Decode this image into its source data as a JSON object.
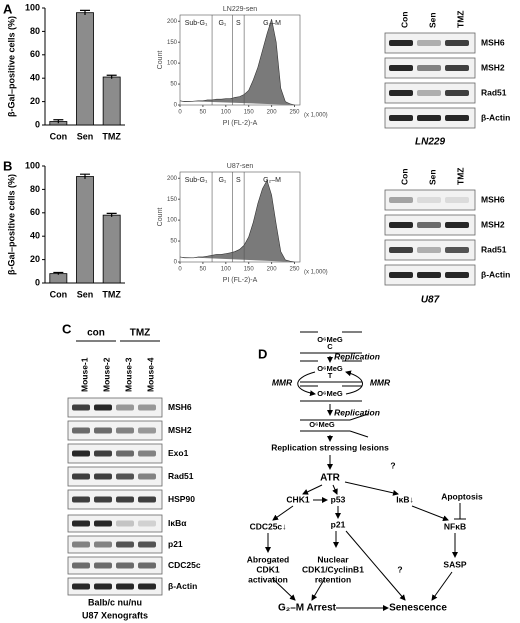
{
  "panel_labels": [
    "A",
    "B",
    "C",
    "D"
  ],
  "chart_data": [
    {
      "type": "bar",
      "ylabel": "β-Gal–positive cells (%)",
      "categories": [
        "Con",
        "Sen",
        "TMZ"
      ],
      "values": [
        3,
        96,
        41
      ],
      "errors": [
        1.5,
        2,
        1.5
      ],
      "color": "#8c8c8c",
      "ylim": [
        0,
        100
      ],
      "yticks": [
        0,
        20,
        40,
        60,
        80,
        100
      ]
    },
    {
      "type": "area",
      "title": "LN229-sen",
      "xlabel": "PI (FL-2)-A",
      "ylabel": "Count",
      "x_unit": "(x 1,000)",
      "x": [
        0,
        10,
        20,
        30,
        40,
        50,
        60,
        70,
        80,
        90,
        100,
        110,
        120,
        130,
        140,
        150,
        160,
        170,
        180,
        190,
        200,
        210,
        220,
        230,
        240,
        250
      ],
      "values": [
        10,
        8,
        8,
        9,
        10,
        10,
        12,
        12,
        14,
        14,
        15,
        15,
        18,
        20,
        25,
        35,
        60,
        90,
        130,
        170,
        205,
        150,
        40,
        8,
        3,
        0
      ],
      "color": "#7a7a7a",
      "xlim": [
        0,
        262
      ],
      "xticks": [
        0,
        50,
        100,
        150,
        200,
        250
      ],
      "ylim": [
        0,
        215
      ],
      "yticks": [
        0,
        50,
        100,
        150,
        200
      ],
      "gates": [
        {
          "label": "Sub-G₁",
          "range": [
            0,
            70
          ]
        },
        {
          "label": "G₁",
          "range": [
            70,
            115
          ]
        },
        {
          "label": "S",
          "range": [
            115,
            140
          ]
        },
        {
          "label": "G₂–M",
          "range": [
            140,
            262
          ]
        }
      ]
    },
    {
      "type": "bar",
      "ylabel": "β-Gal–positive cells (%)",
      "categories": [
        "Con",
        "Sen",
        "TMZ"
      ],
      "values": [
        8,
        91,
        58
      ],
      "errors": [
        1,
        2,
        1.5
      ],
      "color": "#8c8c8c",
      "ylim": [
        0,
        100
      ],
      "yticks": [
        0,
        20,
        40,
        60,
        80,
        100
      ]
    },
    {
      "type": "area",
      "title": "U87-sen",
      "xlabel": "PI (FL-2)-A",
      "ylabel": "Count",
      "x_unit": "(x 1,000)",
      "x": [
        0,
        10,
        20,
        30,
        40,
        50,
        60,
        70,
        80,
        90,
        100,
        110,
        120,
        130,
        140,
        150,
        160,
        170,
        180,
        190,
        200,
        210,
        220,
        230,
        240,
        250
      ],
      "values": [
        12,
        10,
        10,
        10,
        12,
        12,
        14,
        16,
        18,
        18,
        20,
        22,
        25,
        30,
        40,
        60,
        95,
        140,
        175,
        195,
        160,
        90,
        25,
        5,
        2,
        0
      ],
      "color": "#7a7a7a",
      "xlim": [
        0,
        262
      ],
      "xticks": [
        0,
        50,
        100,
        150,
        200,
        250
      ],
      "ylim": [
        0,
        215
      ],
      "yticks": [
        0,
        50,
        100,
        150,
        200
      ],
      "gates": [
        {
          "label": "Sub-G₁",
          "range": [
            0,
            70
          ]
        },
        {
          "label": "G₁",
          "range": [
            70,
            115
          ]
        },
        {
          "label": "S",
          "range": [
            115,
            140
          ]
        },
        {
          "label": "G₂–M",
          "range": [
            140,
            262
          ]
        }
      ]
    }
  ],
  "blots": [
    {
      "columns": [
        "Con",
        "Sen",
        "TMZ"
      ],
      "rows": [
        "MSH6",
        "MSH2",
        "Rad51",
        "β-Actin"
      ],
      "caption": "LN229"
    },
    {
      "columns": [
        "Con",
        "Sen",
        "TMZ"
      ],
      "rows": [
        "MSH6",
        "MSH2",
        "Rad51",
        "β-Actin"
      ],
      "caption": "U87"
    },
    {
      "groups": [
        "con",
        "TMZ"
      ],
      "columns": [
        "Mouse-1",
        "Mouse-2",
        "Mouse-3",
        "Mouse-4"
      ],
      "rows": [
        "MSH6",
        "MSH2",
        "Exo1",
        "Rad51",
        "HSP90"
      ],
      "rows2": [
        "IκBα",
        "p21",
        "CDC25c",
        "β-Actin"
      ],
      "caption": [
        "Balb/c nu/nu",
        "U87 Xenografts"
      ]
    }
  ],
  "diagram": {
    "nodes": [
      {
        "lines": [
          "O⁶MeG"
        ]
      },
      {
        "lines": [
          "C"
        ]
      },
      {
        "lines": [
          "Replication"
        ]
      },
      {
        "lines": [
          "O⁶MeG"
        ]
      },
      {
        "lines": [
          "T"
        ]
      },
      {
        "lines": [
          "MMR"
        ]
      },
      {
        "lines": [
          "MMR"
        ]
      },
      {
        "lines": [
          "O⁶MeG"
        ]
      },
      {
        "lines": [
          "Replication"
        ]
      },
      {
        "lines": [
          "O⁶MeG"
        ]
      },
      {
        "lines": [
          "Replication stressing lesions"
        ]
      },
      {
        "lines": [
          "ATR"
        ]
      },
      {
        "lines": [
          "?"
        ]
      },
      {
        "lines": [
          "CHK1"
        ]
      },
      {
        "lines": [
          "p53"
        ]
      },
      {
        "lines": [
          "IκB↓"
        ]
      },
      {
        "lines": [
          "Apoptosis"
        ]
      },
      {
        "lines": [
          "NFκB"
        ]
      },
      {
        "lines": [
          "CDC25c↓"
        ]
      },
      {
        "lines": [
          "p21"
        ]
      },
      {
        "lines": [
          "SASP"
        ]
      },
      {
        "lines": [
          "Abrogated",
          "CDK1",
          "activation"
        ]
      },
      {
        "lines": [
          "Nuclear",
          "CDK1/CyclinB1",
          "retention"
        ]
      },
      {
        "lines": [
          "?"
        ]
      },
      {
        "lines": [
          "G₂–M Arrest"
        ]
      },
      {
        "lines": [
          "Senescence"
        ]
      }
    ]
  }
}
